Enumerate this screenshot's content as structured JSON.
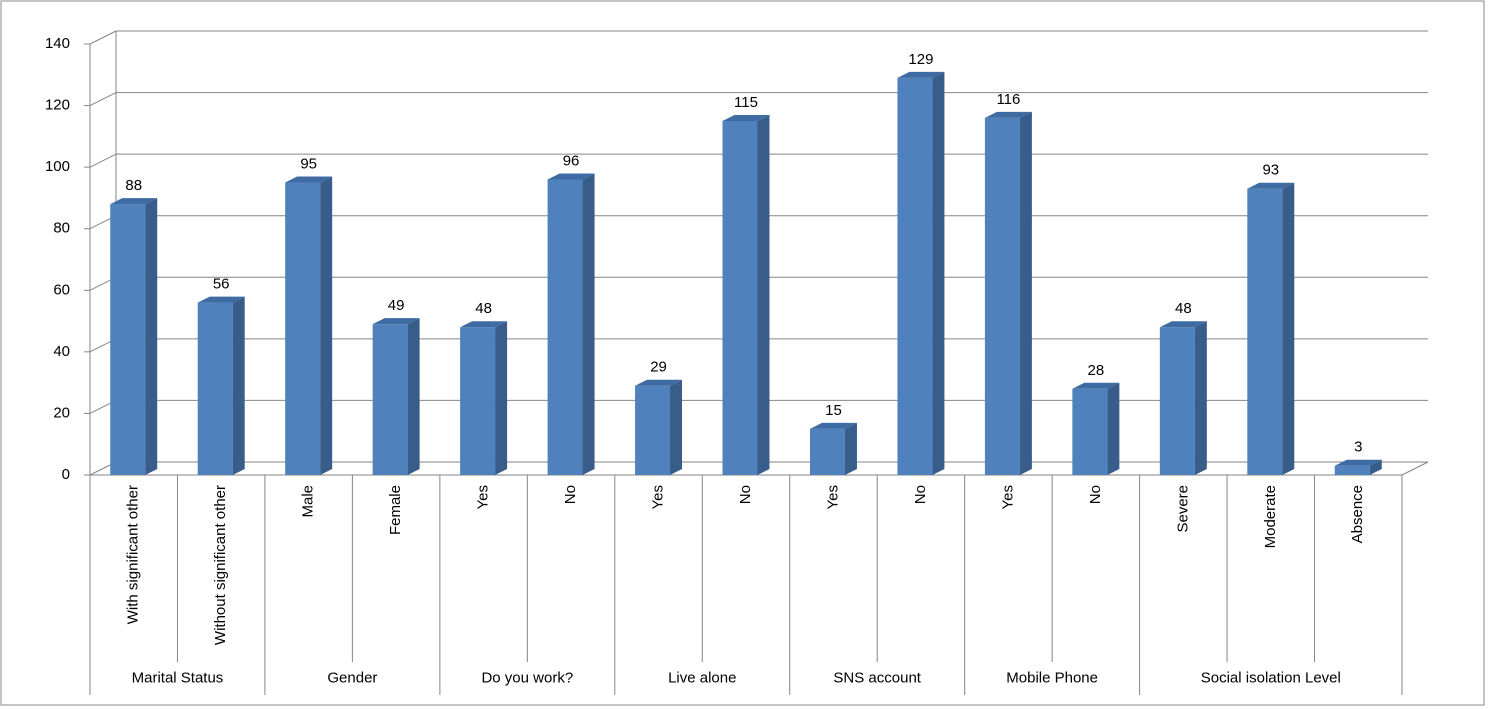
{
  "chart_data": {
    "type": "bar",
    "color": "#4f81bd",
    "ylim": [
      0,
      140
    ],
    "yticks": [
      0,
      20,
      40,
      60,
      80,
      100,
      120,
      140
    ],
    "grid": true,
    "groups": [
      {
        "name": "Marital Status",
        "categories": [
          "With significant other",
          "Without significant other"
        ],
        "values": [
          88,
          56
        ]
      },
      {
        "name": "Gender",
        "categories": [
          "Male",
          "Female"
        ],
        "values": [
          95,
          49
        ]
      },
      {
        "name": "Do you work?",
        "categories": [
          "Yes",
          "No"
        ],
        "values": [
          48,
          96
        ]
      },
      {
        "name": "Live alone",
        "categories": [
          "Yes",
          "No"
        ],
        "values": [
          29,
          115
        ]
      },
      {
        "name": "SNS account",
        "categories": [
          "Yes",
          "No"
        ],
        "values": [
          15,
          129
        ]
      },
      {
        "name": "Mobile Phone",
        "categories": [
          "Yes",
          "No"
        ],
        "values": [
          116,
          28
        ]
      },
      {
        "name": "Social isolation Level",
        "categories": [
          "Severe",
          "Moderate",
          "Absence"
        ],
        "values": [
          48,
          93,
          3
        ]
      }
    ]
  }
}
